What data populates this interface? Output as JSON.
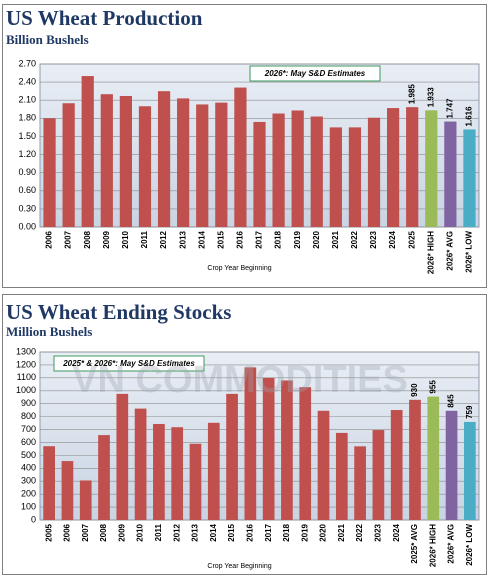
{
  "watermark": "VN COMMODITIES",
  "chart_data": [
    {
      "type": "bar",
      "title": "US Wheat Production",
      "subtitle": "Billion Bushels",
      "x_label": "Crop Year Beginning",
      "annotation": "2026*: May S&D Estimates",
      "categories": [
        "2006",
        "2007",
        "2008",
        "2009",
        "2010",
        "2011",
        "2012",
        "2013",
        "2014",
        "2015",
        "2016",
        "2017",
        "2018",
        "2019",
        "2020",
        "2021",
        "2022",
        "2023",
        "2024",
        "2025",
        "2026* HIGH",
        "2026* AVG",
        "2026* LOW"
      ],
      "values": [
        1.8,
        2.05,
        2.5,
        2.2,
        2.17,
        2.0,
        2.25,
        2.13,
        2.03,
        2.06,
        2.31,
        1.74,
        1.88,
        1.93,
        1.83,
        1.65,
        1.65,
        1.81,
        1.97,
        1.985,
        1.933,
        1.747,
        1.616
      ],
      "value_labels": [
        null,
        null,
        null,
        null,
        null,
        null,
        null,
        null,
        null,
        null,
        null,
        null,
        null,
        null,
        null,
        null,
        null,
        null,
        null,
        "1.985",
        "1.933",
        "1.747",
        "1.616"
      ],
      "colors": [
        "#c0504d",
        "#c0504d",
        "#c0504d",
        "#c0504d",
        "#c0504d",
        "#c0504d",
        "#c0504d",
        "#c0504d",
        "#c0504d",
        "#c0504d",
        "#c0504d",
        "#c0504d",
        "#c0504d",
        "#c0504d",
        "#c0504d",
        "#c0504d",
        "#c0504d",
        "#c0504d",
        "#c0504d",
        "#c0504d",
        "#9bbb59",
        "#8064a2",
        "#4bacc6"
      ],
      "ylim": [
        0,
        2.7
      ],
      "yticks": [
        {
          "value": 0,
          "label": "0.00"
        },
        {
          "value": 0.3,
          "label": "0.30"
        },
        {
          "value": 0.6,
          "label": "0.60"
        },
        {
          "value": 0.9,
          "label": "0.90"
        },
        {
          "value": 1.2,
          "label": "1.20"
        },
        {
          "value": 1.5,
          "label": "1.50"
        },
        {
          "value": 1.8,
          "label": "1.80"
        },
        {
          "value": 2.1,
          "label": "2.10"
        },
        {
          "value": 2.4,
          "label": "2.40"
        },
        {
          "value": 2.7,
          "label": "2.70"
        }
      ],
      "grid": true
    },
    {
      "type": "bar",
      "title": "US Wheat Ending Stocks",
      "subtitle": "Million Bushels",
      "x_label": "Crop Year Beginning",
      "annotation": "2025* & 2026*: May S&D Estimates",
      "categories": [
        "2005",
        "2006",
        "2007",
        "2008",
        "2009",
        "2010",
        "2011",
        "2012",
        "2013",
        "2014",
        "2015",
        "2016",
        "2017",
        "2018",
        "2019",
        "2020",
        "2021",
        "2022",
        "2023",
        "2024",
        "2025* AVG",
        "2026* HIGH",
        "2026* AVG",
        "2026* LOW"
      ],
      "values": [
        571,
        456,
        306,
        657,
        976,
        862,
        743,
        718,
        590,
        752,
        976,
        1181,
        1100,
        1080,
        1028,
        845,
        674,
        570,
        696,
        851,
        930,
        955,
        845,
        759
      ],
      "value_labels": [
        null,
        null,
        null,
        null,
        null,
        null,
        null,
        null,
        null,
        null,
        null,
        null,
        null,
        null,
        null,
        null,
        null,
        null,
        null,
        null,
        "930",
        "955",
        "845",
        "759"
      ],
      "colors": [
        "#c0504d",
        "#c0504d",
        "#c0504d",
        "#c0504d",
        "#c0504d",
        "#c0504d",
        "#c0504d",
        "#c0504d",
        "#c0504d",
        "#c0504d",
        "#c0504d",
        "#c0504d",
        "#c0504d",
        "#c0504d",
        "#c0504d",
        "#c0504d",
        "#c0504d",
        "#c0504d",
        "#c0504d",
        "#c0504d",
        "#c0504d",
        "#9bbb59",
        "#8064a2",
        "#4bacc6"
      ],
      "ylim": [
        0,
        1300
      ],
      "yticks": [
        0,
        100,
        200,
        300,
        400,
        500,
        600,
        700,
        800,
        900,
        1000,
        1100,
        1200,
        1300
      ],
      "grid": true
    }
  ]
}
